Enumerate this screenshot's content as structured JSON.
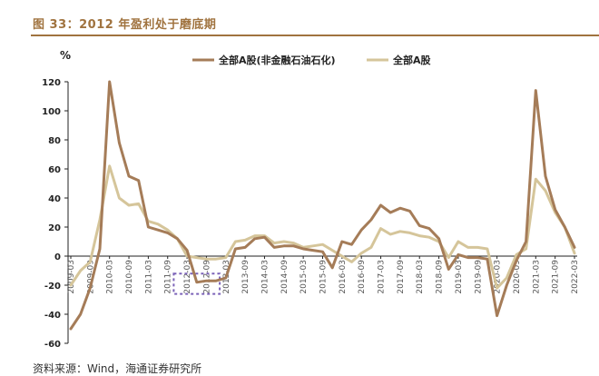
{
  "header": {
    "title": "图 33：2012 年盈利处于磨底期",
    "unit": "%",
    "source": "资料来源：Wind，海通证券研究所"
  },
  "colors": {
    "accent": "#a0733f",
    "series1": "#a57c58",
    "series2": "#d5c59a",
    "highlight_box": "#7b62b8"
  },
  "chart_data": {
    "type": "line",
    "title": "",
    "xlabel": "",
    "ylabel": "%",
    "ylim": [
      -60,
      120
    ],
    "yticks": [
      -60,
      -40,
      -20,
      0,
      20,
      40,
      60,
      80,
      100,
      120
    ],
    "grid": false,
    "legend_position": "top",
    "x": [
      "2009-03",
      "2009-06",
      "2009-09",
      "2009-12",
      "2010-03",
      "2010-06",
      "2010-09",
      "2010-12",
      "2011-03",
      "2011-06",
      "2011-09",
      "2011-12",
      "2012-03",
      "2012-06",
      "2012-09",
      "2012-12",
      "2013-03",
      "2013-06",
      "2013-09",
      "2013-12",
      "2014-03",
      "2014-06",
      "2014-09",
      "2014-12",
      "2015-03",
      "2015-06",
      "2015-09",
      "2015-12",
      "2016-03",
      "2016-06",
      "2016-09",
      "2016-12",
      "2017-03",
      "2017-06",
      "2017-09",
      "2017-12",
      "2018-03",
      "2018-06",
      "2018-09",
      "2018-12",
      "2019-03",
      "2019-06",
      "2019-09",
      "2019-12",
      "2020-03",
      "2020-06",
      "2020-09",
      "2020-12",
      "2021-03",
      "2021-06",
      "2021-09",
      "2021-12",
      "2022-03"
    ],
    "xticks": [
      "2009-03",
      "2009-09",
      "2010-03",
      "2010-09",
      "2011-03",
      "2011-09",
      "2012-03",
      "2012-09",
      "2013-03",
      "2013-09",
      "2014-03",
      "2014-09",
      "2015-03",
      "2015-09",
      "2016-03",
      "2016-09",
      "2017-03",
      "2017-09",
      "2018-03",
      "2018-09",
      "2019-03",
      "2019-09",
      "2020-03",
      "2020-09",
      "2021-03",
      "2021-09",
      "2022-03"
    ],
    "series": [
      {
        "name": "全部A股(非金融石油石化)",
        "values": [
          -50,
          -40,
          -22,
          5,
          120,
          78,
          55,
          52,
          20,
          18,
          16,
          12,
          4,
          -18,
          -17,
          -17,
          -15,
          5,
          6,
          12,
          13,
          6,
          7,
          7,
          5,
          4,
          3,
          -8,
          10,
          8,
          18,
          25,
          35,
          30,
          33,
          31,
          21,
          19,
          12,
          -9,
          1,
          -1,
          -1,
          -2,
          -41,
          -20,
          -3,
          10,
          114,
          55,
          32,
          20,
          6
        ]
      },
      {
        "name": "全部A股",
        "values": [
          -20,
          -10,
          -4,
          25,
          62,
          40,
          35,
          36,
          24,
          22,
          18,
          12,
          0,
          -1,
          -2,
          -2,
          -1,
          10,
          11,
          14,
          14,
          9,
          10,
          9,
          6,
          7,
          8,
          4,
          0,
          -4,
          2,
          6,
          19,
          15,
          17,
          16,
          14,
          13,
          10,
          -1,
          10,
          6,
          6,
          5,
          -22,
          -15,
          1,
          5,
          53,
          45,
          30,
          20,
          2
        ]
      }
    ],
    "annotations": [
      {
        "type": "dashed-box",
        "x_range": [
          "2011-12",
          "2012-12"
        ],
        "y_range": [
          -26,
          -12
        ]
      }
    ]
  }
}
